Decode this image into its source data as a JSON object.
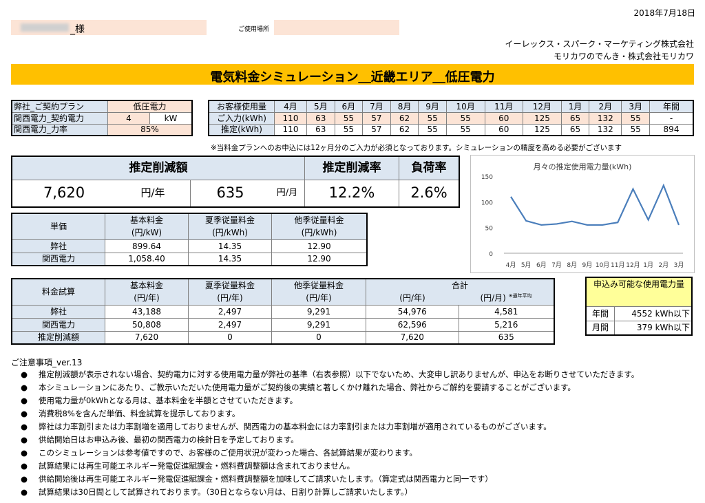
{
  "header": {
    "date": "2018年7月18日",
    "customer_suffix": "_様",
    "usage_location_label": "ご使用場所",
    "company1": "イーレックス・スパーク・マーケティング株式会社",
    "company2": "モリカワのでんき・株式会社モリカワ"
  },
  "title": "電気料金シミュレーション＿近畿エリア＿低圧電力",
  "plan": {
    "rows": [
      {
        "label": "弊社_ご契約プラン",
        "value": "低圧電力",
        "unit": ""
      },
      {
        "label": "関西電力_契約電力",
        "value": "4",
        "unit": "kW"
      },
      {
        "label": "関西電力_力率",
        "value": "85%",
        "unit": ""
      }
    ]
  },
  "usage": {
    "header": [
      "お客様使用量",
      "4月",
      "5月",
      "6月",
      "7月",
      "8月",
      "9月",
      "10月",
      "11月",
      "12月",
      "1月",
      "2月",
      "3月",
      "年間"
    ],
    "input_label": "ご入力(kWh)",
    "input": [
      "110",
      "63",
      "55",
      "57",
      "62",
      "55",
      "55",
      "60",
      "125",
      "65",
      "132",
      "55",
      "-"
    ],
    "estimate_label": "推定(kWh)",
    "estimate": [
      "110",
      "63",
      "55",
      "57",
      "62",
      "55",
      "55",
      "60",
      "125",
      "65",
      "132",
      "55",
      "894"
    ],
    "note": "※当料金プランへのお申込には12ヶ月分のご入力が必須となっております。シミュレーションの精度を高める必要がございます"
  },
  "summary": {
    "reduction_label": "推定削減額",
    "rate_label": "推定削減率",
    "load_label": "負荷率",
    "yearly_value": "7,620",
    "yearly_unit": "円/年",
    "monthly_value": "635",
    "monthly_unit": "円/月",
    "rate_value": "12.2%",
    "load_value": "2.6%"
  },
  "unit_price": {
    "title": "単価",
    "headers": [
      [
        "基本料金",
        "(円/kW)"
      ],
      [
        "夏季従量料金",
        "(円/kWh)"
      ],
      [
        "他季従量料金",
        "(円/kWh)"
      ]
    ],
    "rows": [
      {
        "label": "弊社",
        "values": [
          "899.64",
          "14.35",
          "12.90"
        ]
      },
      {
        "label": "関西電力",
        "values": [
          "1,058.40",
          "14.35",
          "12.90"
        ]
      }
    ]
  },
  "trial": {
    "title": "料金試算",
    "headers": [
      "基本料金",
      "夏季従量料金",
      "他季従量料金",
      "合計"
    ],
    "units": [
      "(円/年)",
      "(円/年)",
      "(円/年)",
      "(円/年)",
      "(円/月)"
    ],
    "avg_note": "※通年平均",
    "rows": [
      {
        "label": "弊社",
        "values": [
          "43,188",
          "2,497",
          "9,291",
          "54,976",
          "4,581"
        ]
      },
      {
        "label": "関西電力",
        "values": [
          "50,808",
          "2,497",
          "9,291",
          "62,596",
          "5,216"
        ]
      },
      {
        "label": "推定削減額",
        "values": [
          "7,620",
          "0",
          "0",
          "7,620",
          "635"
        ]
      }
    ]
  },
  "capacity": {
    "title": "申込み可能な使用電力量",
    "rows": [
      {
        "label": "年間",
        "value": "4552 kWh以下"
      },
      {
        "label": "月間",
        "value": "379 kWh以下"
      }
    ]
  },
  "notes": {
    "title": "ご注意事項_ver.13",
    "items": [
      "推定削減額が表示されない場合、契約電力に対する使用電力量が弊社の基準（右表参照）以下でないため、大変申し訳ありませんが、申込をお断りさせていただきます。",
      "本シミュレーションにあたり、ご教示いただいた使用電力量がご契約後の実績と著しくかけ離れた場合、弊社からご解約を要請することがございます。",
      "使用電力量が0kWhとなる月は、基本料金を半額とさせていただきます。",
      "消費税8%を含んだ単価、料金試算を提示しております。",
      "弊社は力率割引または力率割増を適用しておりませんが、関西電力の基本料金には力率割引または力率割増が適用されているものがございます。",
      "供給開始日はお申込み後、最初の関西電力の検針日を予定しております。",
      "このシミュレーションは参考値ですので、お客様のご使用状況が変わった場合、各試算結果が変わります。",
      "試算結果には再生可能エネルギー発電促進賦課金・燃料費調整額は含まれておりません。",
      "供給開始後は再生可能エネルギー発電促進賦課金・燃料費調整額を加味してご請求いたします。（算定式は関西電力と同一です）",
      "試算結果は30日間として試算されております。（30日とならない月は、日割り計算しご請求いたします。）"
    ]
  },
  "chart_data": {
    "type": "line",
    "title": "月々の推定使用電力量(kWh)",
    "categories": [
      "4月",
      "5月",
      "6月",
      "7月",
      "8月",
      "9月",
      "10月",
      "11月",
      "12月",
      "1月",
      "2月",
      "3月"
    ],
    "series": [
      {
        "values": [
          110,
          63,
          55,
          57,
          62,
          55,
          55,
          60,
          125,
          65,
          132,
          55
        ]
      }
    ],
    "y_ticks": [
      "0",
      "50",
      "100",
      "150"
    ],
    "ylim": [
      0,
      150
    ],
    "color": "#4a7ebb"
  }
}
